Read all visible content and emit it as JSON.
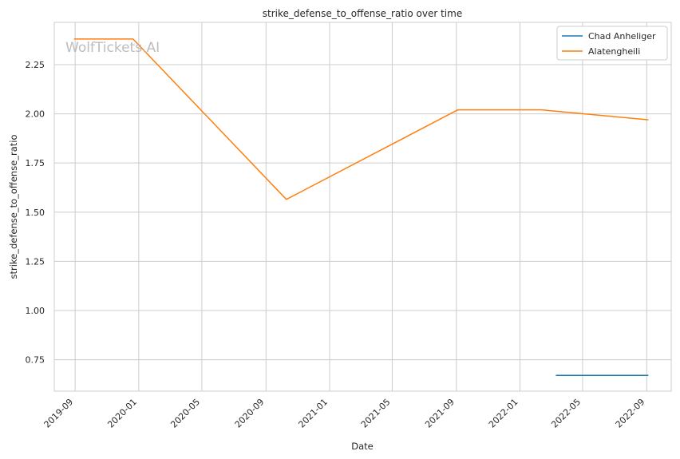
{
  "watermark": "WolfTickets.AI",
  "chart_data": {
    "type": "line",
    "title": "strike_defense_to_offense_ratio over time",
    "xlabel": "Date",
    "ylabel": "strike_defense_to_offense_ratio",
    "x_type": "date",
    "xlim": [
      "2019-07-23",
      "2022-10-18"
    ],
    "ylim": [
      0.59,
      2.465
    ],
    "x_ticks": [
      "2019-09-01",
      "2020-01-01",
      "2020-05-01",
      "2020-09-01",
      "2021-01-01",
      "2021-05-01",
      "2021-09-01",
      "2022-01-01",
      "2022-05-01",
      "2022-09-01"
    ],
    "x_tick_labels": [
      "2019-09",
      "2020-01",
      "2020-05",
      "2020-09",
      "2021-01",
      "2021-05",
      "2021-09",
      "2022-01",
      "2022-05",
      "2022-09"
    ],
    "y_ticks": [
      0.75,
      1.0,
      1.25,
      1.5,
      1.75,
      2.0,
      2.25
    ],
    "y_tick_labels": [
      "0.75",
      "1.00",
      "1.25",
      "1.50",
      "1.75",
      "2.00",
      "2.25"
    ],
    "grid": true,
    "legend_position": "top-right",
    "series": [
      {
        "name": "Chad Anheliger",
        "color": "#1f77b4",
        "points": [
          {
            "x": "2022-03-12",
            "y": 0.67
          },
          {
            "x": "2022-09-03",
            "y": 0.67
          }
        ]
      },
      {
        "name": "Alatengheili",
        "color": "#ff7f0e",
        "points": [
          {
            "x": "2019-08-31",
            "y": 2.38
          },
          {
            "x": "2019-12-21",
            "y": 2.38
          },
          {
            "x": "2020-10-10",
            "y": 1.565
          },
          {
            "x": "2021-09-04",
            "y": 2.02
          },
          {
            "x": "2022-02-11",
            "y": 2.02
          },
          {
            "x": "2022-09-03",
            "y": 1.97
          }
        ]
      }
    ]
  }
}
